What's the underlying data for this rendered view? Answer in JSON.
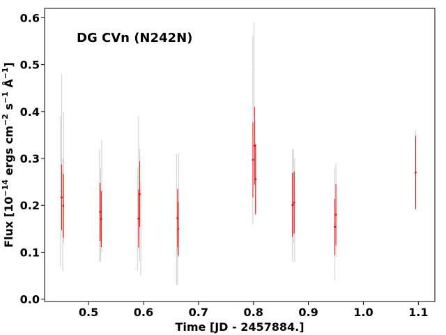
{
  "chart_data": {
    "type": "scatter",
    "title": "DG CVn  (N242N)",
    "xlabel": "Time [JD - 2457884.]",
    "ylabel": {
      "prefix": "Flux [10",
      "exp1": "−14",
      "mid1": " ergs cm",
      "exp2": "−2",
      "mid2": " s",
      "exp3": "−1",
      "mid3": " Å",
      "exp4": "−1",
      "suffix": "]"
    },
    "xlim": [
      0.42,
      1.13
    ],
    "ylim": [
      -0.005,
      0.62
    ],
    "x_ticks": [
      {
        "value": 0.5,
        "label": "0.5"
      },
      {
        "value": 0.6,
        "label": "0.6"
      },
      {
        "value": 0.7,
        "label": "0.7"
      },
      {
        "value": 0.8,
        "label": "0.8"
      },
      {
        "value": 0.9,
        "label": "0.9"
      },
      {
        "value": 1.0,
        "label": "1.0"
      },
      {
        "value": 1.1,
        "label": "1.1"
      }
    ],
    "y_ticks": [
      {
        "value": 0.0,
        "label": "0.0"
      },
      {
        "value": 0.1,
        "label": "0.1"
      },
      {
        "value": 0.2,
        "label": "0.2"
      },
      {
        "value": 0.3,
        "label": "0.3"
      },
      {
        "value": 0.4,
        "label": "0.4"
      },
      {
        "value": 0.5,
        "label": "0.5"
      },
      {
        "value": 0.6,
        "label": "0.6"
      }
    ],
    "grid": false,
    "legend": "none",
    "series": [
      {
        "color": "#ff0000",
        "style": "points-with-errorbars",
        "points": [
          {
            "x": 0.451,
            "y": 0.217,
            "err": 0.07
          },
          {
            "x": 0.454,
            "y": 0.199,
            "err": 0.068
          },
          {
            "x": 0.521,
            "y": 0.186,
            "err": 0.062
          },
          {
            "x": 0.523,
            "y": 0.171,
            "err": 0.06
          },
          {
            "x": 0.591,
            "y": 0.172,
            "err": 0.062
          },
          {
            "x": 0.593,
            "y": 0.224,
            "err": 0.07
          },
          {
            "x": 0.662,
            "y": 0.173,
            "err": 0.062
          },
          {
            "x": 0.663,
            "y": 0.15,
            "err": 0.057
          },
          {
            "x": 0.799,
            "y": 0.297,
            "err": 0.08
          },
          {
            "x": 0.802,
            "y": 0.327,
            "err": 0.083
          },
          {
            "x": 0.804,
            "y": 0.256,
            "err": 0.075
          },
          {
            "x": 0.871,
            "y": 0.201,
            "err": 0.068
          },
          {
            "x": 0.874,
            "y": 0.206,
            "err": 0.066
          },
          {
            "x": 0.948,
            "y": 0.154,
            "err": 0.06
          },
          {
            "x": 0.95,
            "y": 0.18,
            "err": 0.065
          },
          {
            "x": 1.095,
            "y": 0.27,
            "err": 0.078
          }
        ]
      },
      {
        "color": "#c8c8c8",
        "style": "points-with-errorbars",
        "points": [
          {
            "x": 0.449,
            "y": 0.23,
            "err": 0.16
          },
          {
            "x": 0.451,
            "y": 0.37,
            "err": 0.11
          },
          {
            "x": 0.453,
            "y": 0.18,
            "err": 0.12
          },
          {
            "x": 0.455,
            "y": 0.26,
            "err": 0.14
          },
          {
            "x": 0.52,
            "y": 0.2,
            "err": 0.12
          },
          {
            "x": 0.522,
            "y": 0.18,
            "err": 0.1
          },
          {
            "x": 0.524,
            "y": 0.22,
            "err": 0.12
          },
          {
            "x": 0.589,
            "y": 0.17,
            "err": 0.11
          },
          {
            "x": 0.591,
            "y": 0.26,
            "err": 0.13
          },
          {
            "x": 0.593,
            "y": 0.2,
            "err": 0.12
          },
          {
            "x": 0.595,
            "y": 0.15,
            "err": 0.1
          },
          {
            "x": 0.66,
            "y": 0.17,
            "err": 0.14
          },
          {
            "x": 0.662,
            "y": 0.09,
            "err": 0.06
          },
          {
            "x": 0.664,
            "y": 0.2,
            "err": 0.11
          },
          {
            "x": 0.799,
            "y": 0.36,
            "err": 0.2
          },
          {
            "x": 0.801,
            "y": 0.49,
            "err": 0.1
          },
          {
            "x": 0.803,
            "y": 0.28,
            "err": 0.1
          },
          {
            "x": 0.871,
            "y": 0.2,
            "err": 0.12
          },
          {
            "x": 0.873,
            "y": 0.22,
            "err": 0.1
          },
          {
            "x": 0.875,
            "y": 0.19,
            "err": 0.11
          },
          {
            "x": 0.948,
            "y": 0.16,
            "err": 0.12
          },
          {
            "x": 0.95,
            "y": 0.19,
            "err": 0.1
          },
          {
            "x": 1.095,
            "y": 0.28,
            "err": 0.08
          }
        ]
      }
    ]
  }
}
